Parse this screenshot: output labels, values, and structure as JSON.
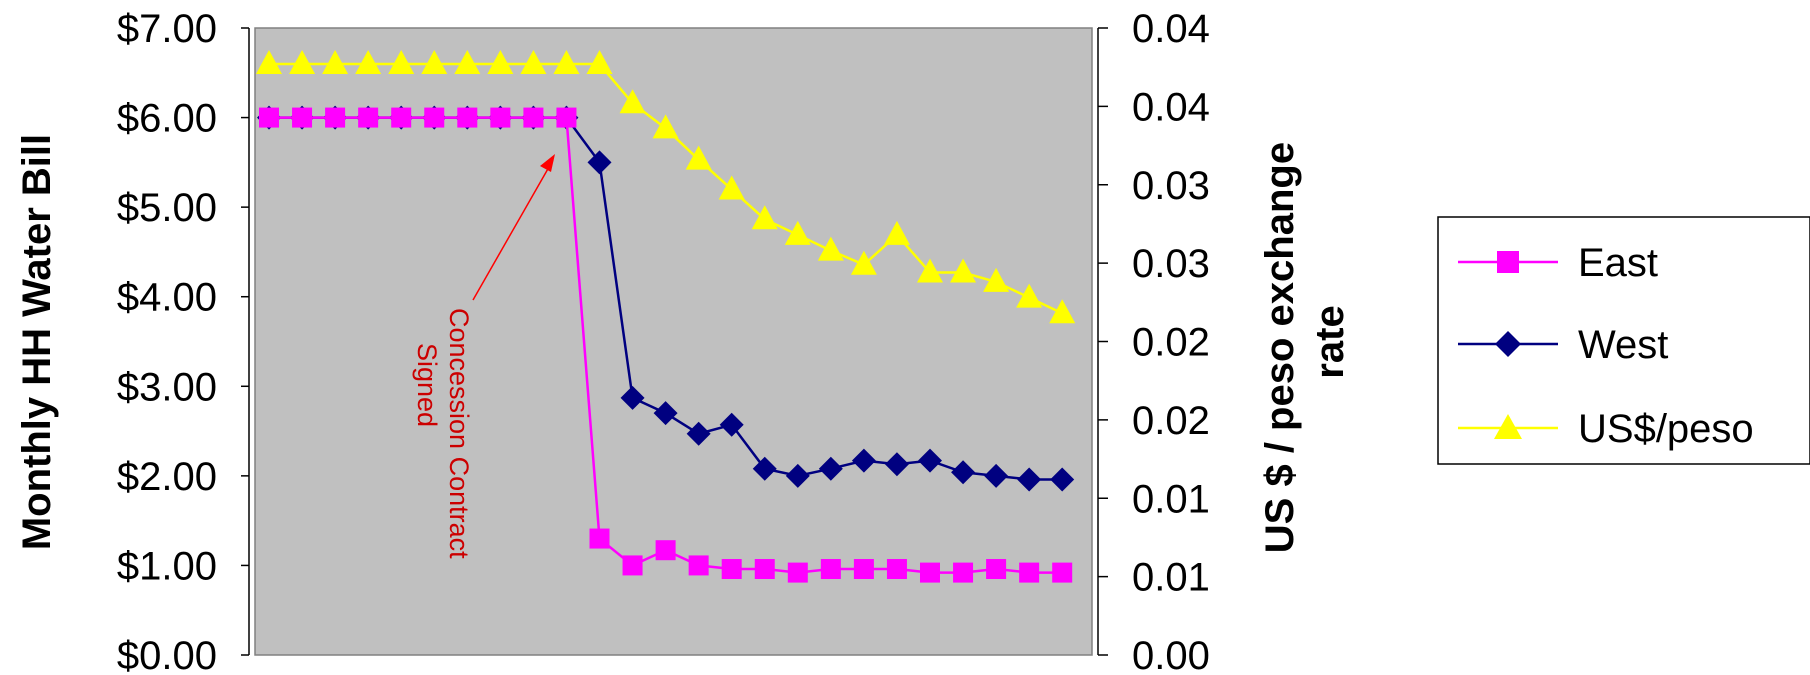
{
  "chart_data": {
    "type": "line",
    "title": "",
    "ylabel": "Monthly HH Water Bill",
    "y2label_lines": [
      "US $ / peso exchange",
      "rate"
    ],
    "ylim": [
      0,
      7
    ],
    "y2lim": [
      0,
      0.04
    ],
    "y_ticks": [
      "$0.00",
      "$1.00",
      "$2.00",
      "$3.00",
      "$4.00",
      "$5.00",
      "$6.00",
      "$7.00"
    ],
    "y2_ticks": [
      "0.00",
      "0.01",
      "0.01",
      "0.02",
      "0.02",
      "0.03",
      "0.03",
      "0.04",
      "0.04"
    ],
    "plot_background": "#c0c0c0",
    "x": [
      1,
      2,
      3,
      4,
      5,
      6,
      7,
      8,
      9,
      10,
      11,
      12,
      13,
      14,
      15,
      16,
      17,
      18,
      19,
      20,
      21,
      22,
      23,
      24,
      25
    ],
    "series": [
      {
        "name": "East",
        "color": "#ff00ff",
        "marker": "square",
        "axis": "left",
        "values": [
          6.0,
          6.0,
          6.0,
          6.0,
          6.0,
          6.0,
          6.0,
          6.0,
          6.0,
          6.0,
          1.3,
          1.0,
          1.17,
          1.0,
          0.96,
          0.96,
          0.92,
          0.96,
          0.96,
          0.96,
          0.92,
          0.92,
          0.96,
          0.92,
          0.92
        ]
      },
      {
        "name": "West",
        "color": "#000080",
        "marker": "diamond",
        "axis": "left",
        "values": [
          6.0,
          6.0,
          6.0,
          6.0,
          6.0,
          6.0,
          6.0,
          6.0,
          6.0,
          6.0,
          5.5,
          2.87,
          2.7,
          2.47,
          2.57,
          2.08,
          2.0,
          2.08,
          2.17,
          2.13,
          2.17,
          2.04,
          2.0,
          1.96,
          1.96
        ]
      },
      {
        "name": "US$/peso",
        "color": "#ffff00",
        "marker": "triangle",
        "axis": "right",
        "values": [
          0.0377,
          0.0377,
          0.0377,
          0.0377,
          0.0377,
          0.0377,
          0.0377,
          0.0377,
          0.0377,
          0.0377,
          0.0377,
          0.0352,
          0.0336,
          0.0316,
          0.0297,
          0.0278,
          0.0268,
          0.0258,
          0.0249,
          0.0268,
          0.0244,
          0.0244,
          0.0238,
          0.0228,
          0.0218
        ]
      }
    ],
    "annotation": {
      "lines": [
        "Concession Contract",
        "Signed"
      ],
      "color": "#cc0000",
      "arrow_to_x": 10
    },
    "legend_position": "right"
  }
}
